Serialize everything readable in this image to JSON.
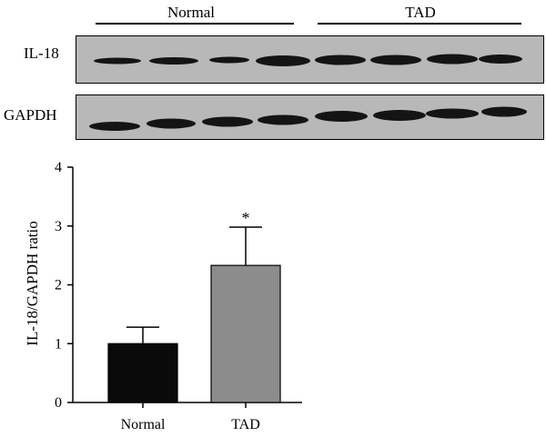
{
  "groups": [
    "Normal",
    "TAD"
  ],
  "blots": [
    {
      "label": "IL-18",
      "bands": [
        1,
        1,
        1,
        1,
        1,
        1,
        1,
        1
      ]
    },
    {
      "label": "GAPDH",
      "bands": [
        1,
        1,
        1,
        1,
        1,
        1,
        1,
        1
      ]
    }
  ],
  "colors": {
    "normal_bar": "#0a0a0a",
    "tad_bar": "#8c8c8c",
    "blot_bg": "#b8b8b8",
    "band": "#141414"
  },
  "chart_data": {
    "type": "bar",
    "categories": [
      "Normal",
      "TAD"
    ],
    "values": [
      1.0,
      2.33
    ],
    "errors": [
      0.28,
      0.65
    ],
    "significance": [
      "",
      "*"
    ],
    "ylabel": "IL-18/GAPDH ratio",
    "xlabel": "",
    "ylim": [
      0,
      4
    ],
    "yticks": [
      "0",
      "1",
      "2",
      "3",
      "4"
    ],
    "grid": false
  }
}
